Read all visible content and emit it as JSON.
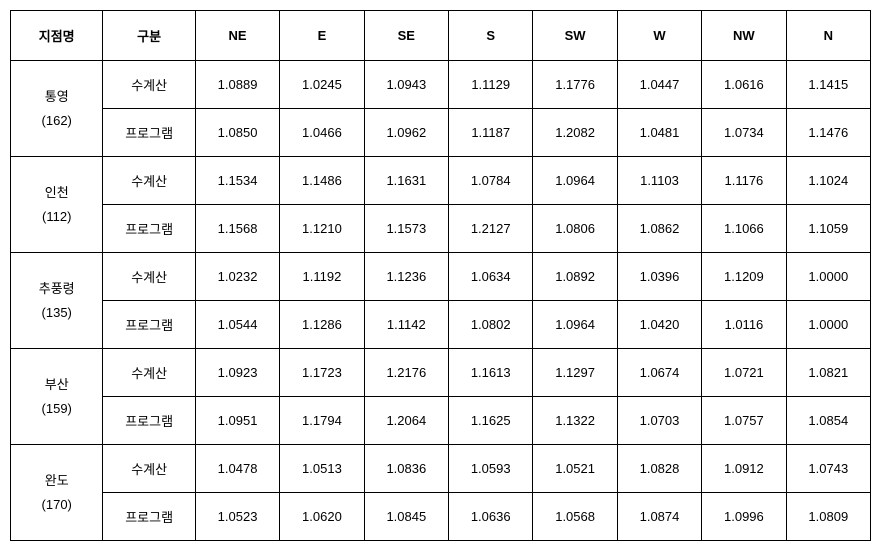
{
  "headers": {
    "location": "지점명",
    "category": "구분",
    "cols": [
      "NE",
      "E",
      "SE",
      "S",
      "SW",
      "W",
      "NW",
      "N"
    ]
  },
  "categories": {
    "manual": "수계산",
    "program": "프로그램"
  },
  "locations": [
    {
      "name": "통영",
      "code": "(162)",
      "rows": [
        [
          "1.0889",
          "1.0245",
          "1.0943",
          "1.1129",
          "1.1776",
          "1.0447",
          "1.0616",
          "1.1415"
        ],
        [
          "1.0850",
          "1.0466",
          "1.0962",
          "1.1187",
          "1.2082",
          "1.0481",
          "1.0734",
          "1.1476"
        ]
      ]
    },
    {
      "name": "인천",
      "code": "(112)",
      "rows": [
        [
          "1.1534",
          "1.1486",
          "1.1631",
          "1.0784",
          "1.0964",
          "1.1103",
          "1.1176",
          "1.1024"
        ],
        [
          "1.1568",
          "1.1210",
          "1.1573",
          "1.2127",
          "1.0806",
          "1.0862",
          "1.1066",
          "1.1059"
        ]
      ]
    },
    {
      "name": "추풍령",
      "code": "(135)",
      "rows": [
        [
          "1.0232",
          "1.1192",
          "1.1236",
          "1.0634",
          "1.0892",
          "1.0396",
          "1.1209",
          "1.0000"
        ],
        [
          "1.0544",
          "1.1286",
          "1.1142",
          "1.0802",
          "1.0964",
          "1.0420",
          "1.0116",
          "1.0000"
        ]
      ]
    },
    {
      "name": "부산",
      "code": "(159)",
      "rows": [
        [
          "1.0923",
          "1.1723",
          "1.2176",
          "1.1613",
          "1.1297",
          "1.0674",
          "1.0721",
          "1.0821"
        ],
        [
          "1.0951",
          "1.1794",
          "1.2064",
          "1.1625",
          "1.1322",
          "1.0703",
          "1.0757",
          "1.0854"
        ]
      ]
    },
    {
      "name": "완도",
      "code": "(170)",
      "rows": [
        [
          "1.0478",
          "1.0513",
          "1.0836",
          "1.0593",
          "1.0521",
          "1.0828",
          "1.0912",
          "1.0743"
        ],
        [
          "1.0523",
          "1.0620",
          "1.0845",
          "1.0636",
          "1.0568",
          "1.0874",
          "1.0996",
          "1.0809"
        ]
      ]
    }
  ]
}
